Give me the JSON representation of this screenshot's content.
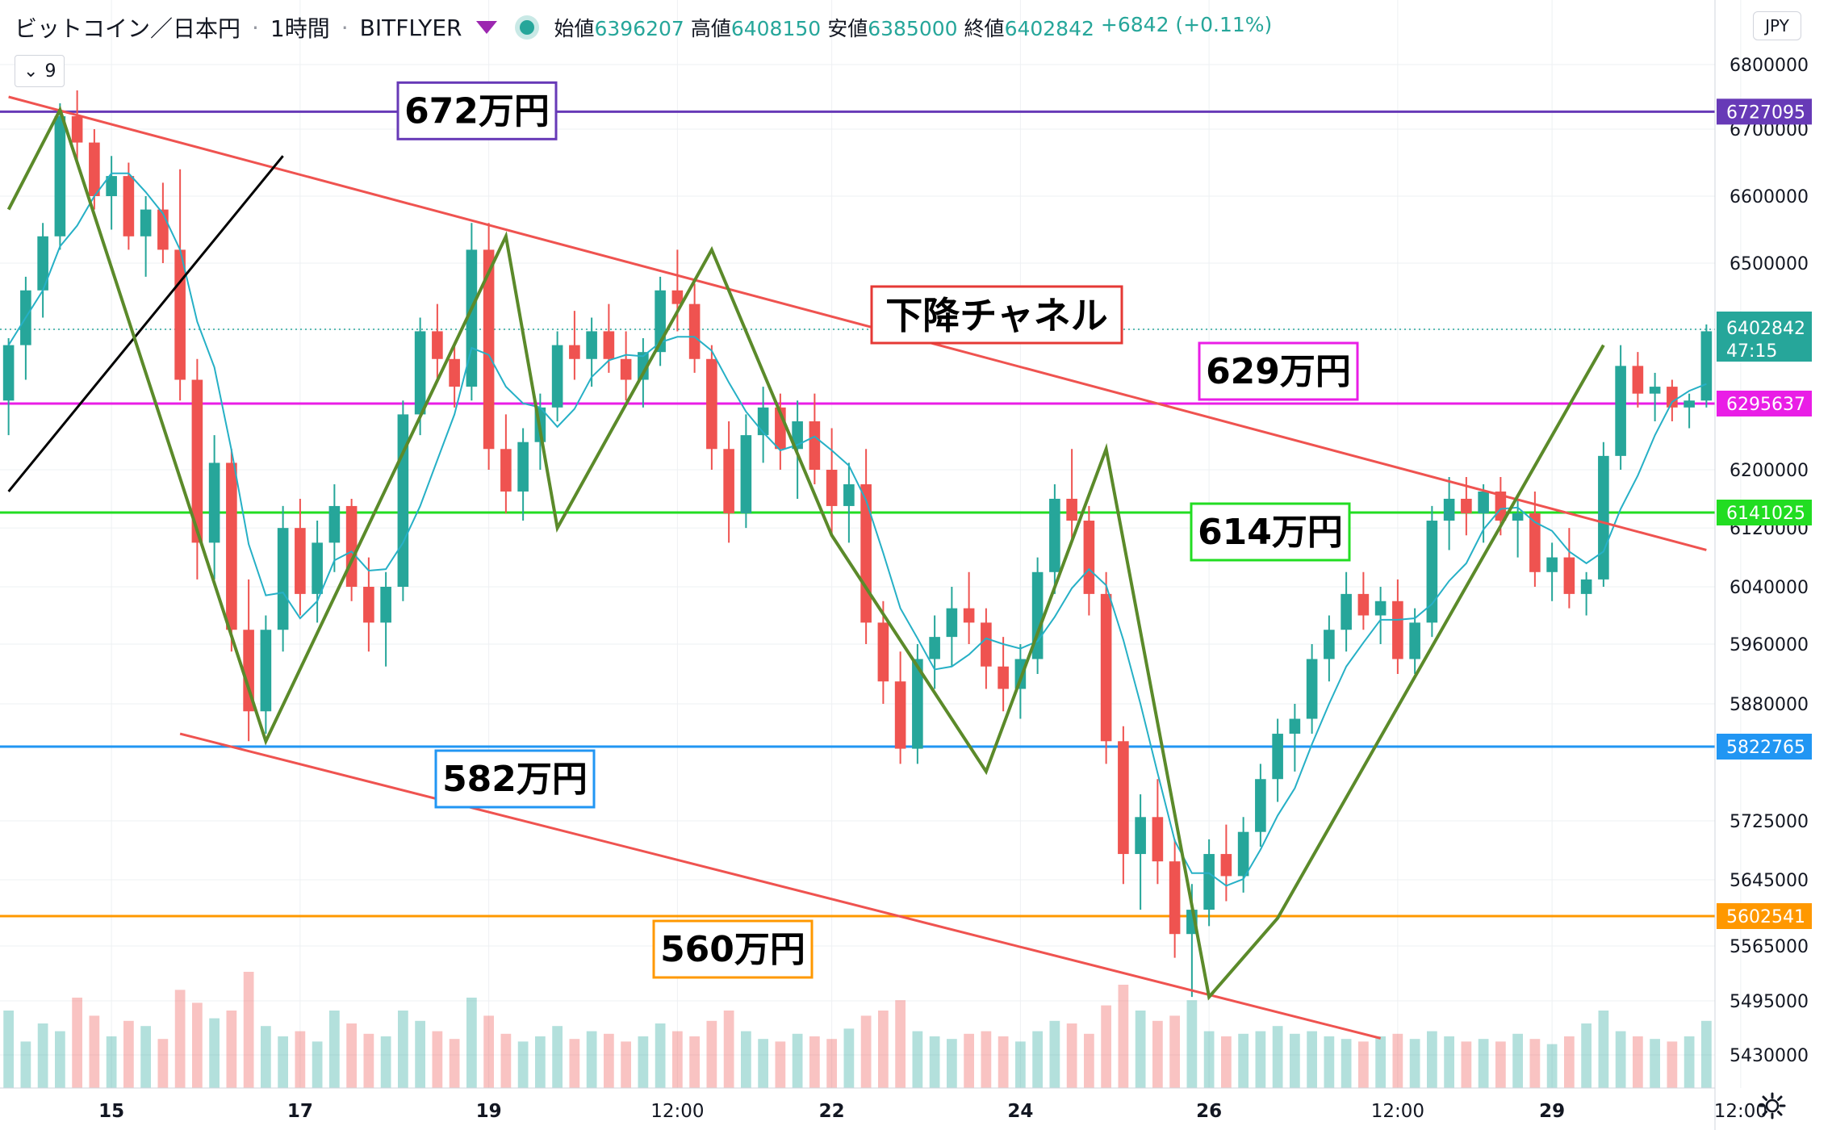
{
  "header": {
    "symbol": "ビットコイン／日本円",
    "interval": "1時間",
    "exchange": "BITFLYER",
    "open_label": "始値",
    "open_value": "6396207",
    "high_label": "高値",
    "high_value": "6408150",
    "low_label": "安値",
    "low_value": "6385000",
    "close_label": "終値",
    "close_value": "6402842",
    "change": "+6842 (+0.11%)",
    "indicator_button": "9",
    "currency_button": "JPY"
  },
  "colors": {
    "up": "#26a69a",
    "down": "#ef5350",
    "zigzag": "#5b8a2a",
    "trend": "#ef5350",
    "ma": "#26b0c6",
    "black_line": "#000000"
  },
  "chart_data": {
    "type": "candlestick",
    "price_range": [
      5390000,
      6850000
    ],
    "y_ticks": [
      "6800000",
      "6700000",
      "6600000",
      "6500000",
      "6402842",
      "6200000",
      "6120000",
      "6040000",
      "5960000",
      "5880000",
      "5725000",
      "5645000",
      "5565000",
      "5495000",
      "5430000"
    ],
    "x_ticks": [
      {
        "label": "15",
        "t": 6
      },
      {
        "label": "17",
        "t": 17
      },
      {
        "label": "19",
        "t": 28
      },
      {
        "label": "12:00",
        "t": 39
      },
      {
        "label": "22",
        "t": 48
      },
      {
        "label": "24",
        "t": 59
      },
      {
        "label": "26",
        "t": 70
      },
      {
        "label": "12:00",
        "t": 81
      },
      {
        "label": "29",
        "t": 90
      },
      {
        "label": "12:00",
        "t": 101
      }
    ],
    "horizontal_levels": [
      {
        "value": 6727095,
        "label": "6727095",
        "color": "#673ab7",
        "box": "672万円"
      },
      {
        "value": 6295637,
        "label": "6295637",
        "color": "#e91ee6",
        "box": "629万円"
      },
      {
        "value": 6141025,
        "label": "6141025",
        "color": "#22dd22",
        "box": "614万円"
      },
      {
        "value": 5822765,
        "label": "5822765",
        "color": "#2196f3",
        "box": "582万円"
      },
      {
        "value": 5602541,
        "label": "5602541",
        "color": "#ff9800",
        "box": "560万円"
      }
    ],
    "current_price": {
      "value": 6402842,
      "label": "6402842",
      "countdown": "47:15"
    },
    "annotation": "下降チャネル",
    "zigzag": [
      [
        0,
        6580000
      ],
      [
        3,
        6730000
      ],
      [
        15,
        5830000
      ],
      [
        29,
        6540000
      ],
      [
        32,
        6120000
      ],
      [
        41,
        6520000
      ],
      [
        48,
        6110000
      ],
      [
        57,
        5790000
      ],
      [
        64,
        6230000
      ],
      [
        70,
        5500000
      ],
      [
        74,
        5600000
      ],
      [
        93,
        6380000
      ]
    ],
    "channel_upper": [
      [
        0,
        6750000
      ],
      [
        99,
        6090000
      ]
    ],
    "channel_lower": [
      [
        10,
        5840000
      ],
      [
        80,
        5450000
      ]
    ],
    "black_line": [
      [
        0,
        6170000
      ],
      [
        16,
        6660000
      ]
    ],
    "candles": [
      [
        6300000,
        6390000,
        6250000,
        6380000
      ],
      [
        6380000,
        6480000,
        6330000,
        6460000
      ],
      [
        6460000,
        6560000,
        6420000,
        6540000
      ],
      [
        6540000,
        6740000,
        6520000,
        6720000
      ],
      [
        6720000,
        6760000,
        6650000,
        6680000
      ],
      [
        6680000,
        6700000,
        6580000,
        6600000
      ],
      [
        6600000,
        6660000,
        6550000,
        6630000
      ],
      [
        6630000,
        6650000,
        6520000,
        6540000
      ],
      [
        6540000,
        6600000,
        6480000,
        6580000
      ],
      [
        6580000,
        6620000,
        6500000,
        6520000
      ],
      [
        6520000,
        6640000,
        6300000,
        6330000
      ],
      [
        6330000,
        6360000,
        6050000,
        6100000
      ],
      [
        6100000,
        6250000,
        6050000,
        6210000
      ],
      [
        6210000,
        6230000,
        5950000,
        5980000
      ],
      [
        5980000,
        6050000,
        5830000,
        5870000
      ],
      [
        5870000,
        6000000,
        5840000,
        5980000
      ],
      [
        5980000,
        6150000,
        5950000,
        6120000
      ],
      [
        6120000,
        6160000,
        6000000,
        6030000
      ],
      [
        6030000,
        6130000,
        5990000,
        6100000
      ],
      [
        6100000,
        6180000,
        6060000,
        6150000
      ],
      [
        6150000,
        6160000,
        6020000,
        6040000
      ],
      [
        6040000,
        6080000,
        5950000,
        5990000
      ],
      [
        5990000,
        6060000,
        5930000,
        6040000
      ],
      [
        6040000,
        6300000,
        6020000,
        6280000
      ],
      [
        6280000,
        6420000,
        6250000,
        6400000
      ],
      [
        6400000,
        6440000,
        6330000,
        6360000
      ],
      [
        6360000,
        6380000,
        6290000,
        6320000
      ],
      [
        6320000,
        6560000,
        6300000,
        6520000
      ],
      [
        6520000,
        6560000,
        6200000,
        6230000
      ],
      [
        6230000,
        6280000,
        6140000,
        6170000
      ],
      [
        6170000,
        6260000,
        6130000,
        6240000
      ],
      [
        6240000,
        6310000,
        6200000,
        6290000
      ],
      [
        6290000,
        6400000,
        6270000,
        6380000
      ],
      [
        6380000,
        6430000,
        6330000,
        6360000
      ],
      [
        6360000,
        6420000,
        6320000,
        6400000
      ],
      [
        6400000,
        6440000,
        6340000,
        6360000
      ],
      [
        6360000,
        6400000,
        6300000,
        6330000
      ],
      [
        6330000,
        6390000,
        6290000,
        6370000
      ],
      [
        6370000,
        6480000,
        6350000,
        6460000
      ],
      [
        6460000,
        6520000,
        6400000,
        6440000
      ],
      [
        6440000,
        6470000,
        6340000,
        6360000
      ],
      [
        6360000,
        6380000,
        6200000,
        6230000
      ],
      [
        6230000,
        6270000,
        6100000,
        6140000
      ],
      [
        6140000,
        6280000,
        6120000,
        6250000
      ],
      [
        6250000,
        6320000,
        6210000,
        6290000
      ],
      [
        6290000,
        6310000,
        6200000,
        6230000
      ],
      [
        6230000,
        6300000,
        6160000,
        6270000
      ],
      [
        6270000,
        6310000,
        6180000,
        6200000
      ],
      [
        6200000,
        6260000,
        6110000,
        6150000
      ],
      [
        6150000,
        6210000,
        6100000,
        6180000
      ],
      [
        6180000,
        6230000,
        5960000,
        5990000
      ],
      [
        5990000,
        6020000,
        5880000,
        5910000
      ],
      [
        5910000,
        5950000,
        5800000,
        5820000
      ],
      [
        5820000,
        5960000,
        5800000,
        5940000
      ],
      [
        5940000,
        6000000,
        5900000,
        5970000
      ],
      [
        5970000,
        6040000,
        5930000,
        6010000
      ],
      [
        6010000,
        6060000,
        5960000,
        5990000
      ],
      [
        5990000,
        6010000,
        5900000,
        5930000
      ],
      [
        5930000,
        5970000,
        5870000,
        5900000
      ],
      [
        5900000,
        5960000,
        5860000,
        5940000
      ],
      [
        5940000,
        6080000,
        5920000,
        6060000
      ],
      [
        6060000,
        6180000,
        6030000,
        6160000
      ],
      [
        6160000,
        6230000,
        6100000,
        6130000
      ],
      [
        6130000,
        6150000,
        6000000,
        6030000
      ],
      [
        6030000,
        6060000,
        5800000,
        5830000
      ],
      [
        5830000,
        5850000,
        5640000,
        5680000
      ],
      [
        5680000,
        5760000,
        5610000,
        5730000
      ],
      [
        5730000,
        5780000,
        5640000,
        5670000
      ],
      [
        5670000,
        5700000,
        5550000,
        5580000
      ],
      [
        5580000,
        5640000,
        5500000,
        5610000
      ],
      [
        5610000,
        5700000,
        5590000,
        5680000
      ],
      [
        5680000,
        5720000,
        5620000,
        5650000
      ],
      [
        5650000,
        5730000,
        5630000,
        5710000
      ],
      [
        5710000,
        5800000,
        5690000,
        5780000
      ],
      [
        5780000,
        5860000,
        5750000,
        5840000
      ],
      [
        5840000,
        5880000,
        5790000,
        5860000
      ],
      [
        5860000,
        5960000,
        5840000,
        5940000
      ],
      [
        5940000,
        6000000,
        5910000,
        5980000
      ],
      [
        5980000,
        6060000,
        5950000,
        6030000
      ],
      [
        6030000,
        6060000,
        5980000,
        6000000
      ],
      [
        6000000,
        6040000,
        5960000,
        6020000
      ],
      [
        6020000,
        6050000,
        5920000,
        5940000
      ],
      [
        5940000,
        6010000,
        5920000,
        5990000
      ],
      [
        5990000,
        6150000,
        5970000,
        6130000
      ],
      [
        6130000,
        6190000,
        6090000,
        6160000
      ],
      [
        6160000,
        6190000,
        6110000,
        6140000
      ],
      [
        6140000,
        6180000,
        6100000,
        6170000
      ],
      [
        6170000,
        6190000,
        6110000,
        6130000
      ],
      [
        6130000,
        6160000,
        6080000,
        6140000
      ],
      [
        6140000,
        6170000,
        6040000,
        6060000
      ],
      [
        6060000,
        6100000,
        6020000,
        6080000
      ],
      [
        6080000,
        6120000,
        6010000,
        6030000
      ],
      [
        6030000,
        6060000,
        6000000,
        6050000
      ],
      [
        6050000,
        6240000,
        6040000,
        6220000
      ],
      [
        6220000,
        6380000,
        6200000,
        6350000
      ],
      [
        6350000,
        6370000,
        6290000,
        6310000
      ],
      [
        6310000,
        6340000,
        6270000,
        6320000
      ],
      [
        6320000,
        6330000,
        6270000,
        6290000
      ],
      [
        6290000,
        6310000,
        6260000,
        6300000
      ],
      [
        6300000,
        6410000,
        6290000,
        6400000
      ]
    ],
    "volumes": [
      30,
      18,
      25,
      22,
      35,
      28,
      20,
      26,
      24,
      19,
      38,
      33,
      27,
      30,
      45,
      24,
      20,
      22,
      18,
      30,
      25,
      21,
      20,
      30,
      26,
      22,
      19,
      35,
      28,
      21,
      18,
      20,
      24,
      19,
      22,
      21,
      18,
      20,
      25,
      22,
      20,
      26,
      30,
      22,
      19,
      18,
      21,
      20,
      19,
      23,
      28,
      30,
      34,
      22,
      20,
      19,
      21,
      22,
      20,
      18,
      22,
      26,
      25,
      21,
      32,
      40,
      30,
      26,
      28,
      34,
      22,
      20,
      21,
      22,
      24,
      21,
      22,
      20,
      19,
      18,
      20,
      21,
      19,
      22,
      20,
      18,
      19,
      18,
      21,
      19,
      17,
      20,
      25,
      30,
      22,
      20,
      19,
      18,
      20,
      26
    ]
  }
}
